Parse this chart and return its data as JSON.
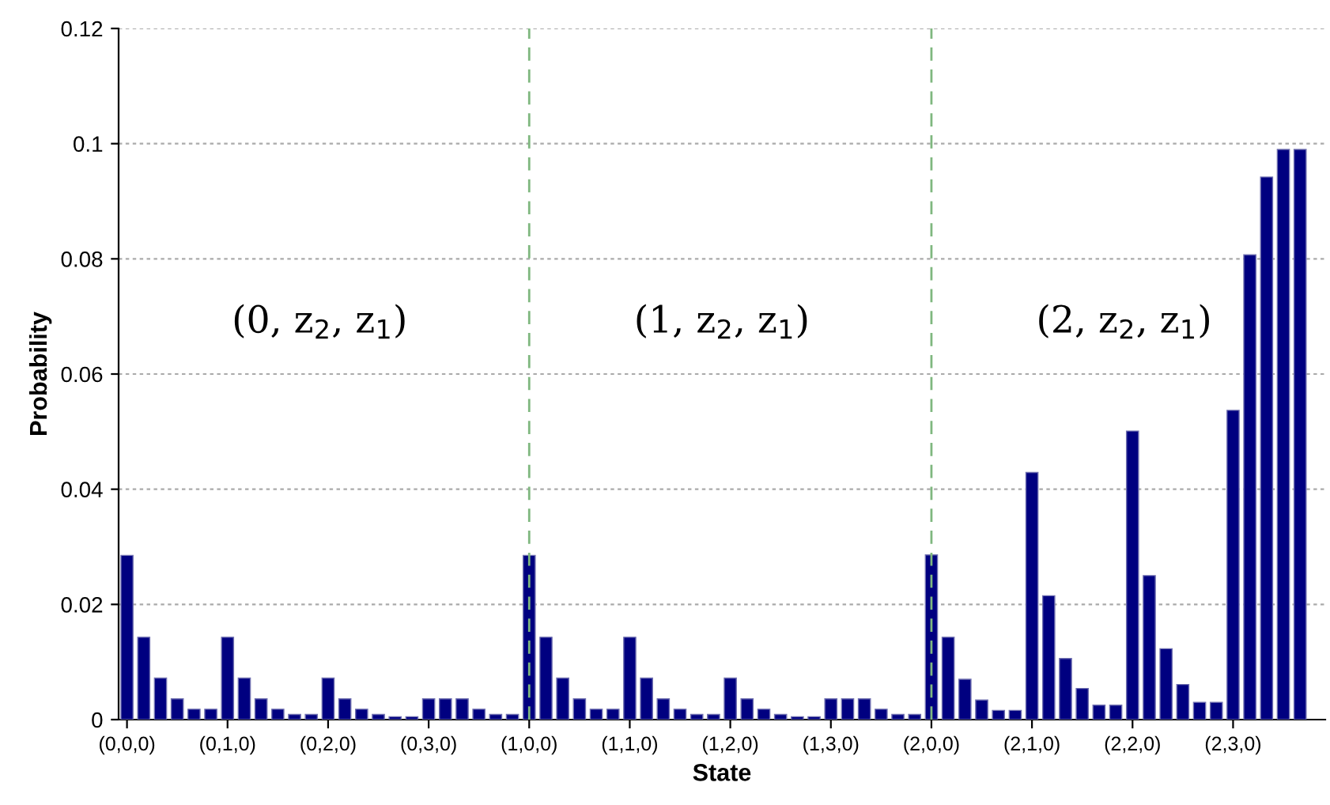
{
  "chart_data": {
    "type": "bar",
    "xlabel": "State",
    "ylabel": "Probability",
    "categories": [
      "(0,0,0)",
      null,
      null,
      null,
      null,
      null,
      "(0,1,0)",
      null,
      null,
      null,
      null,
      null,
      "(0,2,0)",
      null,
      null,
      null,
      null,
      null,
      "(0,3,0)",
      null,
      null,
      null,
      null,
      null,
      "(1,0,0)",
      null,
      null,
      null,
      null,
      null,
      "(1,1,0)",
      null,
      null,
      null,
      null,
      null,
      "(1,2,0)",
      null,
      null,
      null,
      null,
      null,
      "(1,3,0)",
      null,
      null,
      null,
      null,
      null,
      "(2,0,0)",
      null,
      null,
      null,
      null,
      null,
      "(2,1,0)",
      null,
      null,
      null,
      null,
      null,
      "(2,2,0)",
      null,
      null,
      null,
      null,
      null,
      "(2,3,0)",
      null,
      null,
      null,
      null
    ],
    "values": [
      0.0285,
      0.0143,
      0.0072,
      0.0036,
      0.0018,
      0.0018,
      0.0143,
      0.0072,
      0.0036,
      0.0018,
      0.0009,
      0.0009,
      0.0072,
      0.0036,
      0.0018,
      0.0009,
      0.0005,
      0.0005,
      0.0036,
      0.0036,
      0.0036,
      0.0018,
      0.0009,
      0.0009,
      0.0285,
      0.0143,
      0.0072,
      0.0036,
      0.0018,
      0.0018,
      0.0143,
      0.0072,
      0.0036,
      0.0018,
      0.0009,
      0.0009,
      0.0072,
      0.0036,
      0.0018,
      0.0009,
      0.0005,
      0.0005,
      0.0036,
      0.0036,
      0.0036,
      0.0018,
      0.0009,
      0.0009,
      0.0286,
      0.0143,
      0.007,
      0.0034,
      0.0016,
      0.0016,
      0.0429,
      0.0215,
      0.0106,
      0.0054,
      0.0025,
      0.0025,
      0.0501,
      0.025,
      0.0123,
      0.0061,
      0.003,
      0.003,
      0.0537,
      0.0807,
      0.0942,
      0.099,
      0.099
    ],
    "color": "#000080",
    "ylim": [
      0,
      0.12
    ],
    "yticks": [
      0,
      0.02,
      0.04,
      0.06,
      0.08,
      0.1,
      0.12
    ],
    "grid": "y",
    "ref_lines": [
      {
        "axis": "x",
        "value": "(1,0,0)",
        "color": "#7fb77f",
        "line_style": "dashed"
      },
      {
        "axis": "x",
        "value": "(2,0,0)",
        "color": "#7fb77f",
        "line_style": "dashed"
      }
    ],
    "annotations": [
      "(0, z$_{2}$, z$_{1}$)",
      "(1, z$_{2}$, z$_{1}$)",
      "(2, z$_{2}$, z$_{1}$)"
    ]
  }
}
